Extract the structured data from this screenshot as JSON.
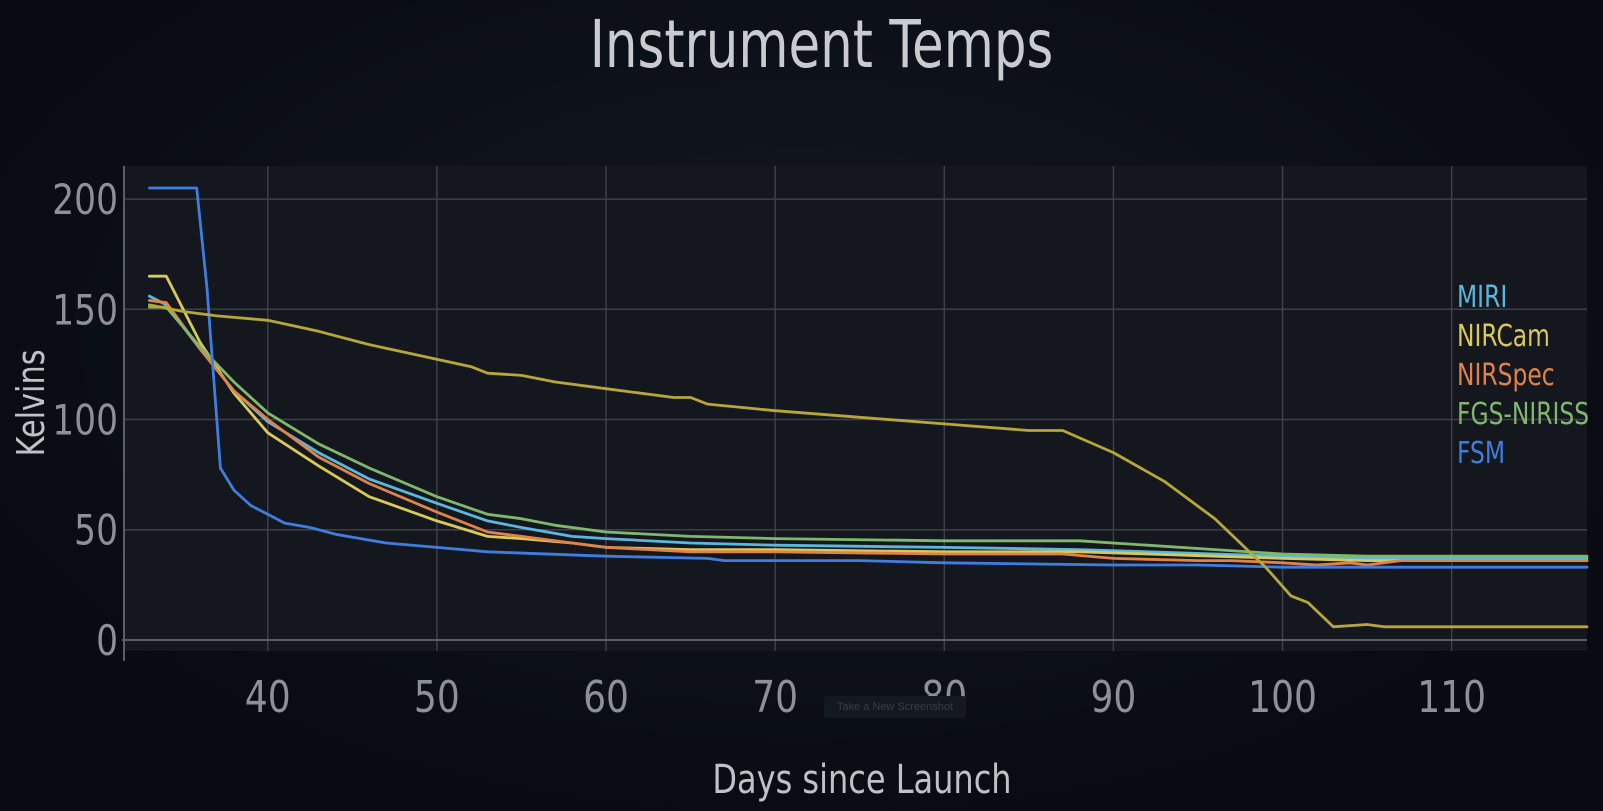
{
  "chart_data": {
    "type": "line",
    "title": "Instrument Temps",
    "xlabel": "Days since Launch",
    "ylabel": "Kelvins",
    "xlim": [
      31.5,
      118
    ],
    "ylim": [
      -5,
      215
    ],
    "xticks": [
      40,
      50,
      60,
      70,
      80,
      90,
      100,
      110
    ],
    "yticks": [
      0,
      50,
      100,
      150,
      200
    ],
    "grid": true,
    "legend_position": "right",
    "series": [
      {
        "name": "MIRI",
        "color": "#5bb8dc",
        "points": [
          [
            33,
            156
          ],
          [
            34,
            152
          ],
          [
            36,
            132
          ],
          [
            38,
            113
          ],
          [
            40,
            99
          ],
          [
            43,
            85
          ],
          [
            46,
            73
          ],
          [
            50,
            62
          ],
          [
            53,
            54
          ],
          [
            55,
            51
          ],
          [
            58,
            47
          ],
          [
            60,
            46
          ],
          [
            65,
            44
          ],
          [
            70,
            43
          ],
          [
            80,
            42
          ],
          [
            88,
            41
          ],
          [
            92,
            40
          ],
          [
            96,
            39
          ],
          [
            100,
            38
          ],
          [
            105,
            37
          ],
          [
            110,
            37
          ],
          [
            118,
            37
          ]
        ]
      },
      {
        "name": "NIRCam",
        "color": "#d9c95a",
        "points": [
          [
            33,
            165
          ],
          [
            34,
            165
          ],
          [
            36,
            135
          ],
          [
            38,
            112
          ],
          [
            40,
            94
          ],
          [
            43,
            79
          ],
          [
            46,
            65
          ],
          [
            50,
            54
          ],
          [
            53,
            47
          ],
          [
            55,
            46
          ],
          [
            58,
            44
          ],
          [
            60,
            42
          ],
          [
            65,
            41
          ],
          [
            70,
            41
          ],
          [
            80,
            40
          ],
          [
            88,
            40
          ],
          [
            92,
            39
          ],
          [
            96,
            38
          ],
          [
            100,
            37
          ],
          [
            105,
            36
          ],
          [
            110,
            36
          ],
          [
            118,
            36
          ]
        ]
      },
      {
        "name": "NIRSpec",
        "color": "#e0834a",
        "points": [
          [
            33,
            154
          ],
          [
            34,
            153
          ],
          [
            36,
            132
          ],
          [
            38,
            113
          ],
          [
            40,
            100
          ],
          [
            43,
            83
          ],
          [
            46,
            71
          ],
          [
            50,
            58
          ],
          [
            53,
            49
          ],
          [
            55,
            47
          ],
          [
            58,
            44
          ],
          [
            60,
            42
          ],
          [
            65,
            40
          ],
          [
            70,
            40
          ],
          [
            80,
            39
          ],
          [
            87,
            39
          ],
          [
            90,
            37
          ],
          [
            95,
            36
          ],
          [
            97,
            36
          ],
          [
            100,
            35
          ],
          [
            102,
            34
          ],
          [
            104,
            35
          ],
          [
            105,
            34
          ],
          [
            107,
            36
          ],
          [
            110,
            36
          ],
          [
            118,
            36
          ]
        ]
      },
      {
        "name": "FGS-NIRISS",
        "color": "#7fb86d",
        "points": [
          [
            33,
            151
          ],
          [
            34,
            151
          ],
          [
            36,
            133
          ],
          [
            38,
            117
          ],
          [
            40,
            103
          ],
          [
            43,
            89
          ],
          [
            46,
            78
          ],
          [
            50,
            65
          ],
          [
            53,
            57
          ],
          [
            55,
            55
          ],
          [
            57,
            52
          ],
          [
            60,
            49
          ],
          [
            65,
            47
          ],
          [
            70,
            46
          ],
          [
            80,
            45
          ],
          [
            88,
            45
          ],
          [
            92,
            43
          ],
          [
            96,
            41
          ],
          [
            100,
            39
          ],
          [
            105,
            38
          ],
          [
            110,
            38
          ],
          [
            118,
            38
          ]
        ]
      },
      {
        "name": "FSM",
        "color": "#3f7de0",
        "points": [
          [
            33,
            205
          ],
          [
            35.8,
            205
          ],
          [
            36.4,
            160
          ],
          [
            37.2,
            78
          ],
          [
            38,
            68
          ],
          [
            39,
            61
          ],
          [
            40,
            57
          ],
          [
            41,
            53
          ],
          [
            42.5,
            51
          ],
          [
            44,
            48
          ],
          [
            47,
            44
          ],
          [
            50,
            42
          ],
          [
            53,
            40
          ],
          [
            60,
            38
          ],
          [
            66,
            37
          ],
          [
            67,
            36
          ],
          [
            75,
            36
          ],
          [
            80,
            35
          ],
          [
            90,
            34
          ],
          [
            95,
            34
          ],
          [
            100,
            33
          ],
          [
            110,
            33
          ],
          [
            118,
            33
          ]
        ]
      },
      {
        "name": "",
        "color": "#b7a63a",
        "points": [
          [
            33,
            152
          ],
          [
            35,
            149
          ],
          [
            37,
            147
          ],
          [
            40,
            145
          ],
          [
            43,
            140
          ],
          [
            46,
            134
          ],
          [
            49,
            129
          ],
          [
            52,
            124
          ],
          [
            53,
            121
          ],
          [
            55,
            120
          ],
          [
            57,
            117
          ],
          [
            60,
            114
          ],
          [
            64,
            110
          ],
          [
            65,
            110
          ],
          [
            66,
            107
          ],
          [
            70,
            104
          ],
          [
            75,
            101
          ],
          [
            80,
            98
          ],
          [
            85,
            95
          ],
          [
            87,
            95
          ],
          [
            90,
            85
          ],
          [
            93,
            72
          ],
          [
            96,
            55
          ],
          [
            99,
            33
          ],
          [
            100.5,
            20
          ],
          [
            101.5,
            17
          ],
          [
            103,
            6
          ],
          [
            105,
            7
          ],
          [
            106,
            6
          ],
          [
            110,
            6
          ],
          [
            118,
            6
          ]
        ]
      }
    ]
  },
  "watermark": "Take a New Screenshot"
}
